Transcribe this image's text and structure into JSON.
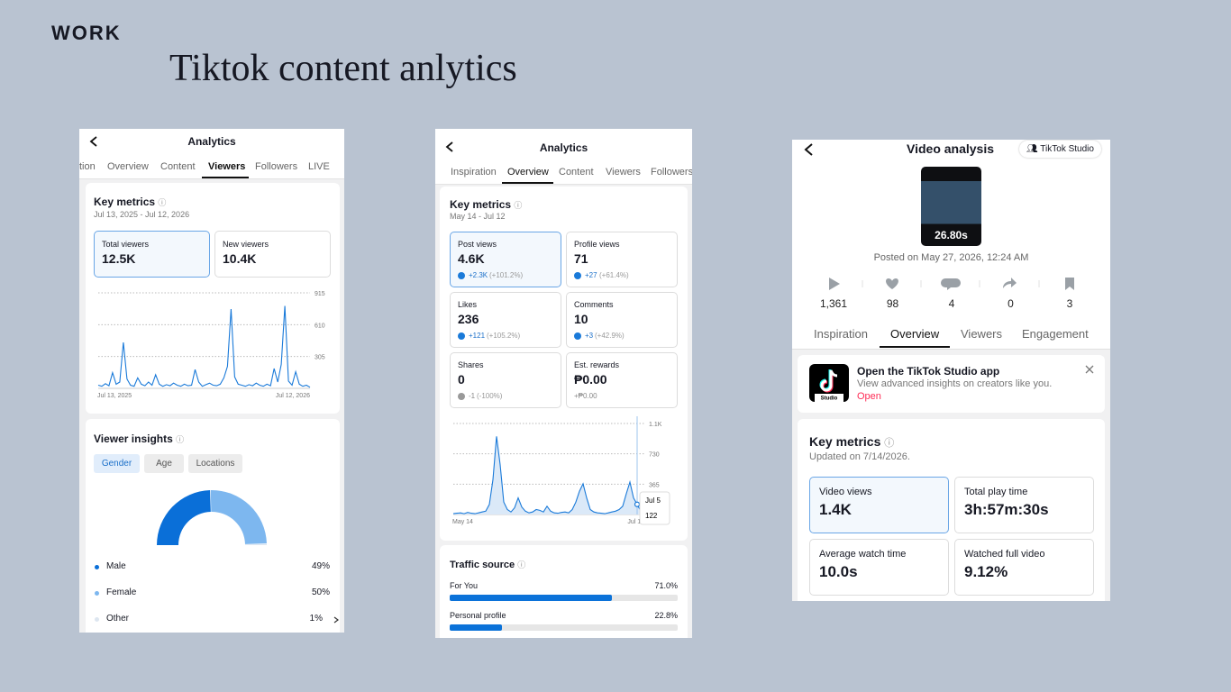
{
  "header": {
    "label": "WORK",
    "title": "Tiktok content anlytics"
  },
  "panel1": {
    "nav_title": "Analytics",
    "tabs": [
      "tion",
      "Overview",
      "Content",
      "Viewers",
      "Followers",
      "LIVE"
    ],
    "key_metrics": {
      "title": "Key metrics",
      "range": "Jul 13, 2025 - Jul 12, 2026",
      "cards": [
        {
          "label": "Total viewers",
          "value": "12.5K"
        },
        {
          "label": "New viewers",
          "value": "10.4K"
        }
      ]
    },
    "chart": {
      "type": "line",
      "color": "#1a7ad9",
      "x_labels": [
        "Jul 13, 2025",
        "Jul 12, 2026"
      ],
      "ylim": [
        0,
        915
      ],
      "yticks": [
        305,
        610,
        915
      ],
      "values": [
        30,
        20,
        45,
        25,
        150,
        40,
        60,
        440,
        90,
        30,
        20,
        100,
        40,
        25,
        60,
        30,
        130,
        40,
        20,
        35,
        25,
        50,
        30,
        20,
        40,
        25,
        30,
        180,
        60,
        20,
        35,
        50,
        30,
        25,
        40,
        100,
        210,
        760,
        110,
        40,
        30,
        20,
        35,
        25,
        50,
        30,
        20,
        40,
        25,
        190,
        60,
        230,
        790,
        70,
        30,
        160,
        40,
        20,
        30,
        10
      ]
    },
    "viewer_insights": {
      "title": "Viewer insights",
      "filters": [
        "Gender",
        "Age",
        "Locations"
      ],
      "chart": {
        "type": "pie",
        "categories": [
          "Male",
          "Female",
          "Other"
        ],
        "values": [
          49,
          50,
          1
        ],
        "value_labels": [
          "49%",
          "50%",
          "1%"
        ],
        "colors": [
          "#0a6fd8",
          "#7db7ef",
          "#dde6f0"
        ]
      }
    }
  },
  "panel2": {
    "nav_title": "Analytics",
    "tabs": [
      "Inspiration",
      "Overview",
      "Content",
      "Viewers",
      "Followers"
    ],
    "key_metrics": {
      "title": "Key metrics",
      "range": "May 14 - Jul 12",
      "cards": [
        {
          "label": "Post views",
          "value": "4.6K",
          "delta": "+2.3K",
          "pct": "(+101.2%)"
        },
        {
          "label": "Profile views",
          "value": "71",
          "delta": "+27",
          "pct": "(+61.4%)"
        },
        {
          "label": "Likes",
          "value": "236",
          "delta": "+121",
          "pct": "(+105.2%)"
        },
        {
          "label": "Comments",
          "value": "10",
          "delta": "+3",
          "pct": "(+42.9%)"
        },
        {
          "label": "Shares",
          "value": "0",
          "delta": "-1",
          "pct": "(-100%)"
        },
        {
          "label": "Est. rewards",
          "value": "₱0.00",
          "delta": "+₱0.00"
        }
      ]
    },
    "chart": {
      "type": "line",
      "color": "#1a7ad9",
      "x_labels": [
        "May 14",
        "Jul 12"
      ],
      "ylim": [
        0,
        1095
      ],
      "yticks": [
        365,
        730,
        {
          "value": 1095,
          "label": "1.1K"
        }
      ],
      "values": [
        10,
        15,
        20,
        10,
        25,
        15,
        10,
        20,
        30,
        40,
        120,
        420,
        940,
        600,
        150,
        60,
        30,
        80,
        200,
        90,
        40,
        20,
        30,
        60,
        50,
        30,
        100,
        40,
        20,
        15,
        25,
        30,
        20,
        60,
        150,
        280,
        370,
        200,
        60,
        30,
        20,
        15,
        10,
        20,
        30,
        40,
        60,
        100,
        250,
        390,
        200,
        122,
        40,
        20
      ],
      "tooltip": {
        "label": "Jul 5",
        "value": "122"
      }
    },
    "traffic": {
      "title": "Traffic source",
      "type": "bar",
      "color": "#0b72d9",
      "categories": [
        "For You",
        "Personal profile"
      ],
      "values": [
        71.0,
        22.8
      ],
      "value_labels": [
        "71.0%",
        "22.8%"
      ],
      "xlim": [
        0,
        100
      ]
    }
  },
  "panel3": {
    "nav_title": "Video analysis",
    "studio_button": "TikTok Studio",
    "duration": "26.80s",
    "posted": "Posted on May 27, 2026, 12:24 AM",
    "stats": [
      "1,361",
      "98",
      "4",
      "0",
      "3"
    ],
    "tabs": [
      "Inspiration",
      "Overview",
      "Viewers",
      "Engagement"
    ],
    "banner": {
      "title": "Open the TikTok Studio app",
      "text": "View advanced insights on creators like you.",
      "link": "Open",
      "icon_label": "Studio"
    },
    "key_metrics": {
      "title": "Key metrics",
      "updated": "Updated on 7/14/2026.",
      "cards": [
        {
          "label": "Video views",
          "value": "1.4K"
        },
        {
          "label": "Total play time",
          "value": "3h:57m:30s"
        },
        {
          "label": "Average watch time",
          "value": "10.0s"
        },
        {
          "label": "Watched full video",
          "value": "9.12%"
        }
      ]
    }
  }
}
